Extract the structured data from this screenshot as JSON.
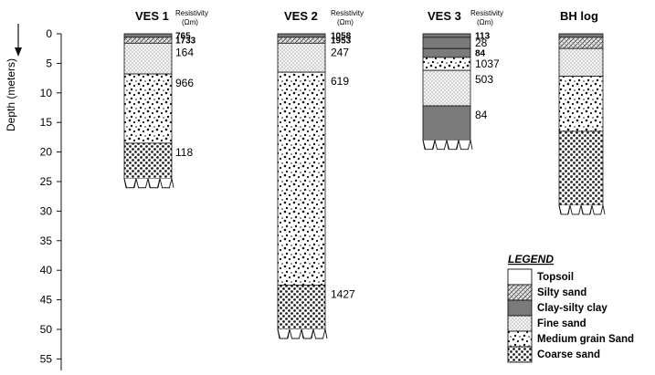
{
  "axis": {
    "label": "Depth (meters)",
    "ticks": [
      "0",
      "5",
      "10",
      "15",
      "20",
      "25",
      "30",
      "35",
      "40",
      "45",
      "50",
      "55"
    ]
  },
  "columns": [
    {
      "key": "ves1",
      "title": "VES 1",
      "resistivity_label": "Resistivity",
      "unit_label": "(Ωm)",
      "layers": [
        {
          "top": 0,
          "bottom": 0.6,
          "type": "clay",
          "value": "765"
        },
        {
          "top": 0.6,
          "bottom": 1.6,
          "type": "silty",
          "value": "1733"
        },
        {
          "top": 1.6,
          "bottom": 6.8,
          "type": "fine",
          "value": "164"
        },
        {
          "top": 6.8,
          "bottom": 18.5,
          "type": "medium",
          "value": "966"
        },
        {
          "top": 18.5,
          "bottom": 24.5,
          "type": "coarse",
          "value": "118"
        }
      ]
    },
    {
      "key": "ves2",
      "title": "VES 2",
      "resistivity_label": "Resistivity",
      "unit_label": "(Ωm)",
      "layers": [
        {
          "top": 0,
          "bottom": 0.6,
          "type": "clay",
          "value": "1058"
        },
        {
          "top": 0.6,
          "bottom": 1.6,
          "type": "silty",
          "value": "1953"
        },
        {
          "top": 1.6,
          "bottom": 6.5,
          "type": "fine",
          "value": "247"
        },
        {
          "top": 6.5,
          "bottom": 42.5,
          "type": "medium",
          "value": "619"
        },
        {
          "top": 42.5,
          "bottom": 50,
          "type": "coarse",
          "value": "1427"
        }
      ]
    },
    {
      "key": "ves3",
      "title": "VES 3",
      "resistivity_label": "Resistivity",
      "unit_label": "(Ωm)",
      "layers": [
        {
          "top": 0,
          "bottom": 0.6,
          "type": "clay",
          "value": "113"
        },
        {
          "top": 0.6,
          "bottom": 2.5,
          "type": "clay",
          "value": "28"
        },
        {
          "top": 2.5,
          "bottom": 4,
          "type": "clay",
          "value": "84"
        },
        {
          "top": 4,
          "bottom": 6.2,
          "type": "medium",
          "value": "1037"
        },
        {
          "top": 6.2,
          "bottom": 12.2,
          "type": "fine",
          "value": "503"
        },
        {
          "top": 12.2,
          "bottom": 18,
          "type": "clay",
          "value": "84"
        }
      ]
    },
    {
      "key": "bh",
      "title": "BH log",
      "resistivity_label": "",
      "unit_label": "",
      "layers": [
        {
          "top": 0,
          "bottom": 0.6,
          "type": "clay",
          "value": ""
        },
        {
          "top": 0.6,
          "bottom": 2.5,
          "type": "silty",
          "value": ""
        },
        {
          "top": 2.5,
          "bottom": 7.2,
          "type": "fine",
          "value": ""
        },
        {
          "top": 7.2,
          "bottom": 16.5,
          "type": "medium",
          "value": ""
        },
        {
          "top": 16.5,
          "bottom": 29,
          "type": "coarse",
          "value": ""
        }
      ]
    }
  ],
  "legend": {
    "title": "LEGEND",
    "items": [
      {
        "type": "topsoil",
        "label": "Topsoil"
      },
      {
        "type": "silty",
        "label": "Silty sand"
      },
      {
        "type": "clay",
        "label": "Clay-silty clay"
      },
      {
        "type": "fine",
        "label": "Fine sand"
      },
      {
        "type": "medium",
        "label": "Medium grain Sand"
      },
      {
        "type": "coarse",
        "label": "Coarse sand"
      }
    ]
  },
  "colors": {
    "clay": "#7a7a7a",
    "line": "#111111"
  }
}
